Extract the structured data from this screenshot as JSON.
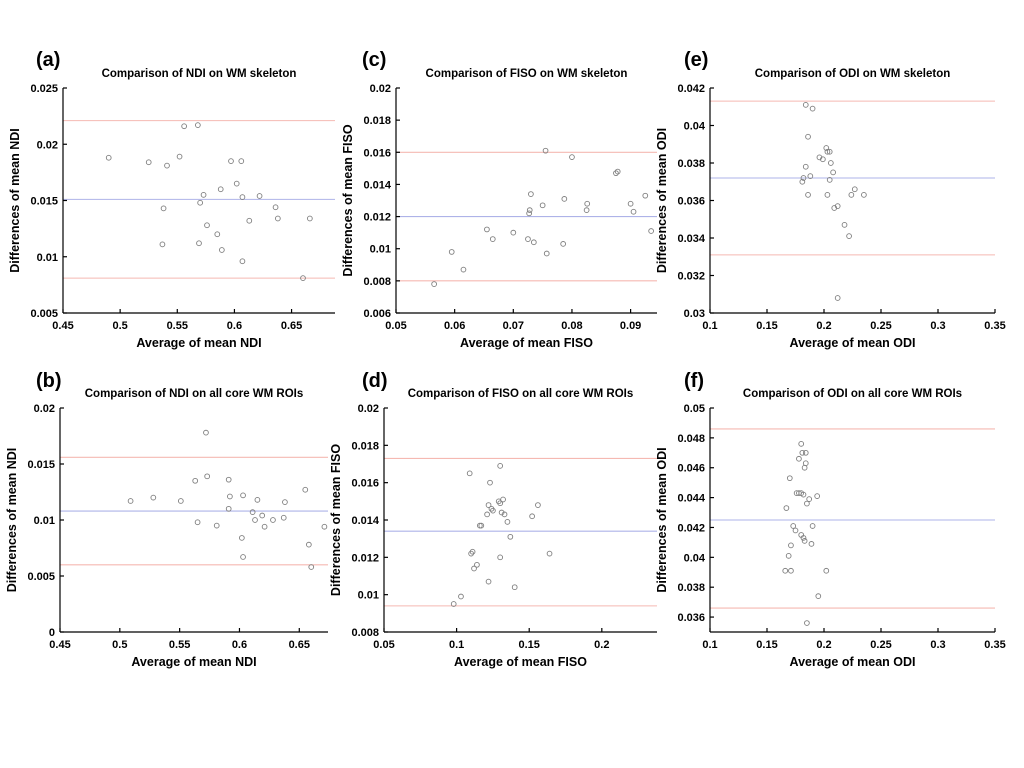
{
  "figure": {
    "background": "#ffffff",
    "description_labels": [
      "(a)",
      "(b)",
      "(c)",
      "(d)",
      "(e)",
      "(f)"
    ]
  },
  "colors": {
    "mean_line": "#aeb3e8",
    "loa_line": "#f5b9b2",
    "marker_stroke": "#7f7f7f",
    "axis": "#000000",
    "text": "#000000"
  },
  "chart_data": [
    {
      "id": "a",
      "panel_label": "(a)",
      "type": "scatter",
      "title": "Comparison of NDI on WM skeleton",
      "xlabel": "Average of mean NDI",
      "ylabel": "Differences of mean NDI",
      "xlim": [
        0.45,
        0.688
      ],
      "ylim": [
        0.005,
        0.025
      ],
      "xticks": [
        0.45,
        0.5,
        0.55,
        0.6,
        0.65
      ],
      "xtick_labels": [
        "0.45",
        "0.5",
        "0.55",
        "0.6",
        "0.65"
      ],
      "yticks": [
        0.005,
        0.01,
        0.015,
        0.02,
        0.025
      ],
      "ytick_labels": [
        "0.005",
        "0.01",
        "0.015",
        "0.02",
        "0.025"
      ],
      "mean_line": 0.0151,
      "upper_loa": 0.0221,
      "lower_loa": 0.0081,
      "grid": false,
      "points": [
        [
          0.49,
          0.0188
        ],
        [
          0.525,
          0.0184
        ],
        [
          0.541,
          0.0181
        ],
        [
          0.556,
          0.0216
        ],
        [
          0.568,
          0.0217
        ],
        [
          0.552,
          0.0189
        ],
        [
          0.597,
          0.0185
        ],
        [
          0.606,
          0.0185
        ],
        [
          0.538,
          0.0143
        ],
        [
          0.537,
          0.0111
        ],
        [
          0.573,
          0.0155
        ],
        [
          0.57,
          0.0148
        ],
        [
          0.569,
          0.0112
        ],
        [
          0.576,
          0.0128
        ],
        [
          0.585,
          0.012
        ],
        [
          0.588,
          0.016
        ],
        [
          0.589,
          0.0106
        ],
        [
          0.602,
          0.0165
        ],
        [
          0.607,
          0.0153
        ],
        [
          0.607,
          0.0096
        ],
        [
          0.613,
          0.0132
        ],
        [
          0.622,
          0.0154
        ],
        [
          0.636,
          0.0144
        ],
        [
          0.638,
          0.0134
        ],
        [
          0.66,
          0.0081
        ],
        [
          0.666,
          0.0134
        ]
      ]
    },
    {
      "id": "b",
      "panel_label": "(b)",
      "type": "scatter",
      "title": "Comparison of NDI on all core WM ROIs",
      "xlabel": "Average of mean NDI",
      "ylabel": "Differences of mean NDI",
      "xlim": [
        0.45,
        0.674
      ],
      "ylim": [
        0,
        0.02
      ],
      "xticks": [
        0.45,
        0.5,
        0.55,
        0.6,
        0.65
      ],
      "xtick_labels": [
        "0.45",
        "0.5",
        "0.55",
        "0.6",
        "0.65"
      ],
      "yticks": [
        0,
        0.005,
        0.01,
        0.015,
        0.02
      ],
      "ytick_labels": [
        "0",
        "0.005",
        "0.01",
        "0.015",
        "0.02"
      ],
      "mean_line": 0.0108,
      "upper_loa": 0.0156,
      "lower_loa": 0.006,
      "grid": false,
      "points": [
        [
          0.509,
          0.0117
        ],
        [
          0.528,
          0.012
        ],
        [
          0.551,
          0.0117
        ],
        [
          0.563,
          0.0135
        ],
        [
          0.572,
          0.0178
        ],
        [
          0.573,
          0.0139
        ],
        [
          0.565,
          0.0098
        ],
        [
          0.581,
          0.0095
        ],
        [
          0.591,
          0.0136
        ],
        [
          0.592,
          0.0121
        ],
        [
          0.591,
          0.011
        ],
        [
          0.603,
          0.0122
        ],
        [
          0.602,
          0.0084
        ],
        [
          0.603,
          0.0067
        ],
        [
          0.611,
          0.0107
        ],
        [
          0.613,
          0.01
        ],
        [
          0.615,
          0.0118
        ],
        [
          0.619,
          0.0104
        ],
        [
          0.621,
          0.0094
        ],
        [
          0.628,
          0.01
        ],
        [
          0.637,
          0.0102
        ],
        [
          0.638,
          0.0116
        ],
        [
          0.655,
          0.0127
        ],
        [
          0.658,
          0.0078
        ],
        [
          0.66,
          0.0058
        ],
        [
          0.671,
          0.0094
        ]
      ]
    },
    {
      "id": "c",
      "panel_label": "(c)",
      "type": "scatter",
      "title": "Comparison of FISO on WM skeleton",
      "xlabel": "Average of mean FISO",
      "ylabel": "Differences of mean FISO",
      "xlim": [
        0.05,
        0.0945
      ],
      "ylim": [
        0.006,
        0.02
      ],
      "xticks": [
        0.05,
        0.06,
        0.07,
        0.08,
        0.09
      ],
      "xtick_labels": [
        "0.05",
        "0.06",
        "0.07",
        "0.08",
        "0.09"
      ],
      "yticks": [
        0.006,
        0.008,
        0.01,
        0.012,
        0.014,
        0.016,
        0.018,
        0.02
      ],
      "ytick_labels": [
        "0.006",
        "0.008",
        "0.01",
        "0.012",
        "0.014",
        "0.016",
        "0.018",
        "0.02"
      ],
      "mean_line": 0.012,
      "upper_loa": 0.016,
      "lower_loa": 0.008,
      "grid": false,
      "points": [
        [
          0.0565,
          0.0078
        ],
        [
          0.0595,
          0.0098
        ],
        [
          0.0615,
          0.0087
        ],
        [
          0.0655,
          0.0112
        ],
        [
          0.0665,
          0.0106
        ],
        [
          0.07,
          0.011
        ],
        [
          0.0725,
          0.0106
        ],
        [
          0.0727,
          0.0122
        ],
        [
          0.0728,
          0.0124
        ],
        [
          0.073,
          0.0134
        ],
        [
          0.0735,
          0.0104
        ],
        [
          0.075,
          0.0127
        ],
        [
          0.0755,
          0.0161
        ],
        [
          0.0757,
          0.0097
        ],
        [
          0.0785,
          0.0103
        ],
        [
          0.0787,
          0.0131
        ],
        [
          0.08,
          0.0157
        ],
        [
          0.0825,
          0.0124
        ],
        [
          0.0826,
          0.0128
        ],
        [
          0.0875,
          0.0147
        ],
        [
          0.0878,
          0.0148
        ],
        [
          0.09,
          0.0128
        ],
        [
          0.0905,
          0.0123
        ],
        [
          0.0925,
          0.0133
        ],
        [
          0.0935,
          0.0111
        ]
      ]
    },
    {
      "id": "d",
      "panel_label": "(d)",
      "type": "scatter",
      "title": "Comparison of FISO on all core WM ROIs",
      "xlabel": "Average of mean FISO",
      "ylabel": "Differences of mean FISO",
      "xlim": [
        0.05,
        0.238
      ],
      "ylim": [
        0.008,
        0.02
      ],
      "xticks": [
        0.05,
        0.1,
        0.15,
        0.2
      ],
      "xtick_labels": [
        "0.05",
        "0.1",
        "0.15",
        "0.2"
      ],
      "yticks": [
        0.008,
        0.01,
        0.012,
        0.014,
        0.016,
        0.018,
        0.02
      ],
      "ytick_labels": [
        "0.008",
        "0.01",
        "0.012",
        "0.014",
        "0.016",
        "0.018",
        "0.02"
      ],
      "mean_line": 0.0134,
      "upper_loa": 0.0173,
      "lower_loa": 0.0094,
      "grid": false,
      "points": [
        [
          0.098,
          0.0095
        ],
        [
          0.103,
          0.0099
        ],
        [
          0.109,
          0.0165
        ],
        [
          0.11,
          0.0122
        ],
        [
          0.111,
          0.0123
        ],
        [
          0.112,
          0.0114
        ],
        [
          0.114,
          0.0116
        ],
        [
          0.116,
          0.0137
        ],
        [
          0.117,
          0.0137
        ],
        [
          0.121,
          0.0143
        ],
        [
          0.122,
          0.0148
        ],
        [
          0.123,
          0.016
        ],
        [
          0.124,
          0.0146
        ],
        [
          0.125,
          0.0145
        ],
        [
          0.122,
          0.0107
        ],
        [
          0.13,
          0.0169
        ],
        [
          0.129,
          0.015
        ],
        [
          0.13,
          0.0149
        ],
        [
          0.132,
          0.0151
        ],
        [
          0.131,
          0.0144
        ],
        [
          0.133,
          0.0143
        ],
        [
          0.135,
          0.0139
        ],
        [
          0.13,
          0.012
        ],
        [
          0.137,
          0.0131
        ],
        [
          0.14,
          0.0104
        ],
        [
          0.152,
          0.0142
        ],
        [
          0.156,
          0.0148
        ],
        [
          0.164,
          0.0122
        ]
      ]
    },
    {
      "id": "e",
      "panel_label": "(e)",
      "type": "scatter",
      "title": "Comparison of ODI on WM skeleton",
      "xlabel": "Average of mean ODI",
      "ylabel": "Differences of mean ODI",
      "xlim": [
        0.1,
        0.35
      ],
      "ylim": [
        0.03,
        0.042
      ],
      "xticks": [
        0.1,
        0.15,
        0.2,
        0.25,
        0.3,
        0.35
      ],
      "xtick_labels": [
        "0.1",
        "0.15",
        "0.2",
        "0.25",
        "0.3",
        "0.35"
      ],
      "yticks": [
        0.03,
        0.032,
        0.034,
        0.036,
        0.038,
        0.04,
        0.042
      ],
      "ytick_labels": [
        "0.03",
        "0.032",
        "0.034",
        "0.036",
        "0.038",
        "0.04",
        "0.042"
      ],
      "mean_line": 0.0372,
      "upper_loa": 0.0413,
      "lower_loa": 0.0331,
      "grid": false,
      "points": [
        [
          0.184,
          0.0411
        ],
        [
          0.19,
          0.0409
        ],
        [
          0.186,
          0.0394
        ],
        [
          0.202,
          0.0388
        ],
        [
          0.203,
          0.0386
        ],
        [
          0.205,
          0.0386
        ],
        [
          0.196,
          0.0383
        ],
        [
          0.199,
          0.0382
        ],
        [
          0.206,
          0.038
        ],
        [
          0.184,
          0.0378
        ],
        [
          0.208,
          0.0375
        ],
        [
          0.182,
          0.0372
        ],
        [
          0.188,
          0.0373
        ],
        [
          0.181,
          0.037
        ],
        [
          0.205,
          0.0371
        ],
        [
          0.227,
          0.0366
        ],
        [
          0.186,
          0.0363
        ],
        [
          0.203,
          0.0363
        ],
        [
          0.224,
          0.0363
        ],
        [
          0.235,
          0.0363
        ],
        [
          0.212,
          0.0357
        ],
        [
          0.209,
          0.0356
        ],
        [
          0.218,
          0.0347
        ],
        [
          0.222,
          0.0341
        ],
        [
          0.212,
          0.0308
        ]
      ]
    },
    {
      "id": "f",
      "panel_label": "(f)",
      "type": "scatter",
      "title": "Comparison of ODI on all core WM ROIs",
      "xlabel": "Average of mean ODI",
      "ylabel": "Differences of mean ODI",
      "xlim": [
        0.1,
        0.35
      ],
      "ylim": [
        0.035,
        0.05
      ],
      "xticks": [
        0.1,
        0.15,
        0.2,
        0.25,
        0.3,
        0.35
      ],
      "xtick_labels": [
        "0.1",
        "0.15",
        "0.2",
        "0.25",
        "0.3",
        "0.35"
      ],
      "yticks": [
        0.036,
        0.038,
        0.04,
        0.042,
        0.044,
        0.046,
        0.048,
        0.05
      ],
      "ytick_labels": [
        "0.036",
        "0.038",
        "0.04",
        "0.042",
        "0.044",
        "0.046",
        "0.048",
        "0.05"
      ],
      "mean_line": 0.0425,
      "upper_loa": 0.0486,
      "lower_loa": 0.0366,
      "grid": false,
      "points": [
        [
          0.18,
          0.0476
        ],
        [
          0.181,
          0.047
        ],
        [
          0.184,
          0.047
        ],
        [
          0.178,
          0.0466
        ],
        [
          0.184,
          0.0463
        ],
        [
          0.183,
          0.046
        ],
        [
          0.17,
          0.0453
        ],
        [
          0.176,
          0.0443
        ],
        [
          0.178,
          0.0443
        ],
        [
          0.18,
          0.0443
        ],
        [
          0.182,
          0.0442
        ],
        [
          0.194,
          0.0441
        ],
        [
          0.187,
          0.0439
        ],
        [
          0.185,
          0.0436
        ],
        [
          0.167,
          0.0433
        ],
        [
          0.173,
          0.0421
        ],
        [
          0.19,
          0.0421
        ],
        [
          0.175,
          0.0418
        ],
        [
          0.18,
          0.0415
        ],
        [
          0.182,
          0.0413
        ],
        [
          0.183,
          0.0411
        ],
        [
          0.171,
          0.0408
        ],
        [
          0.189,
          0.0409
        ],
        [
          0.169,
          0.0401
        ],
        [
          0.166,
          0.0391
        ],
        [
          0.171,
          0.0391
        ],
        [
          0.202,
          0.0391
        ],
        [
          0.195,
          0.0374
        ],
        [
          0.185,
          0.0356
        ]
      ]
    }
  ]
}
